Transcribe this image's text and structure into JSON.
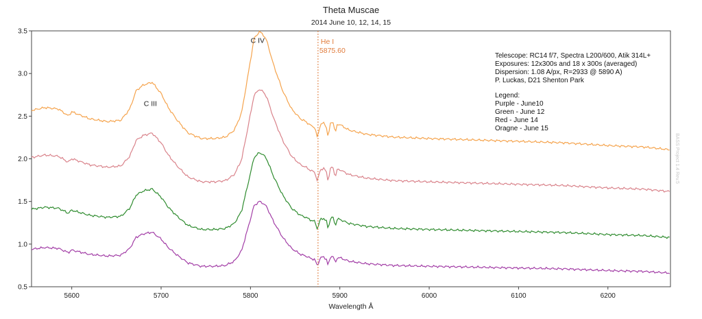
{
  "chart_data": {
    "type": "line",
    "title": "Theta Muscae",
    "subtitle": "2014 June 10, 12, 14, 15",
    "xlabel": "Wavelength Å",
    "ylabel": "",
    "xlim": [
      5555,
      6270
    ],
    "ylim": [
      0.5,
      3.5
    ],
    "xticks": [
      5600,
      5700,
      5800,
      5900,
      6000,
      6100,
      6200
    ],
    "yticks": [
      0.5,
      1.0,
      1.5,
      2.0,
      2.5,
      3.0,
      3.5
    ],
    "xtick_labels": [
      "5600",
      "5700",
      "5800",
      "5900",
      "6000",
      "6100",
      "6200"
    ],
    "ytick_labels": [
      "0.5",
      "1.0",
      "1.5",
      "2.0",
      "2.5",
      "3.0",
      "3.5"
    ],
    "grid": false,
    "annotations": [
      {
        "id": "ciii",
        "text": "C III",
        "x": 5688,
        "y": 2.62
      },
      {
        "id": "civ",
        "text": "C IV",
        "x": 5808,
        "y": 3.36
      }
    ],
    "marker_line": {
      "x": 5875.6,
      "label": "He I",
      "value_label": "5875.60",
      "color": "#e07a3a"
    },
    "info_text": [
      "Telescope: RC14 f/7, Spectra L200/600, Atik 314L+",
      "Exposures: 12x300s and 18 x 300s (averaged)",
      "Dispersion: 1.08 A/px, R=2933 @ 5890 A)",
      "P. Luckas, D21 Shenton Park",
      "",
      "Legend:",
      "Purple - June10",
      "Green - June 12",
      "Red - June 14",
      "Oragne - June 15"
    ],
    "side_text": "BASS Project 1.4 Rev.5",
    "series": [
      {
        "name": "June 10",
        "color": "#a23da6",
        "offset": 0.0
      },
      {
        "name": "June 12",
        "color": "#2e8b2e",
        "offset": 0.34
      },
      {
        "name": "June 14",
        "color": "#d9828a",
        "offset": 0.78
      },
      {
        "name": "June 15",
        "color": "#f5a34c",
        "offset": 1.18
      }
    ],
    "base_profile": {
      "x": [
        5555,
        5570,
        5585,
        5592,
        5596,
        5600,
        5620,
        5640,
        5655,
        5665,
        5672,
        5680,
        5690,
        5700,
        5708,
        5718,
        5730,
        5745,
        5760,
        5772,
        5782,
        5790,
        5797,
        5804,
        5810,
        5814,
        5818,
        5826,
        5836,
        5846,
        5856,
        5862,
        5868,
        5872,
        5875,
        5878,
        5882,
        5885,
        5887,
        5889,
        5891,
        5893,
        5895,
        5897,
        5900,
        5910,
        5930,
        5960,
        6000,
        6050,
        6100,
        6150,
        6200,
        6240,
        6270
      ],
      "y": [
        0.94,
        0.96,
        0.95,
        0.92,
        0.9,
        0.93,
        0.88,
        0.86,
        0.87,
        0.95,
        1.08,
        1.12,
        1.14,
        1.06,
        0.96,
        0.87,
        0.78,
        0.74,
        0.74,
        0.75,
        0.8,
        0.92,
        1.18,
        1.45,
        1.5,
        1.48,
        1.44,
        1.26,
        1.08,
        0.95,
        0.88,
        0.86,
        0.83,
        0.82,
        0.74,
        0.84,
        0.85,
        0.82,
        0.74,
        0.84,
        0.86,
        0.85,
        0.77,
        0.84,
        0.84,
        0.8,
        0.77,
        0.75,
        0.74,
        0.73,
        0.72,
        0.71,
        0.69,
        0.68,
        0.66
      ]
    }
  }
}
